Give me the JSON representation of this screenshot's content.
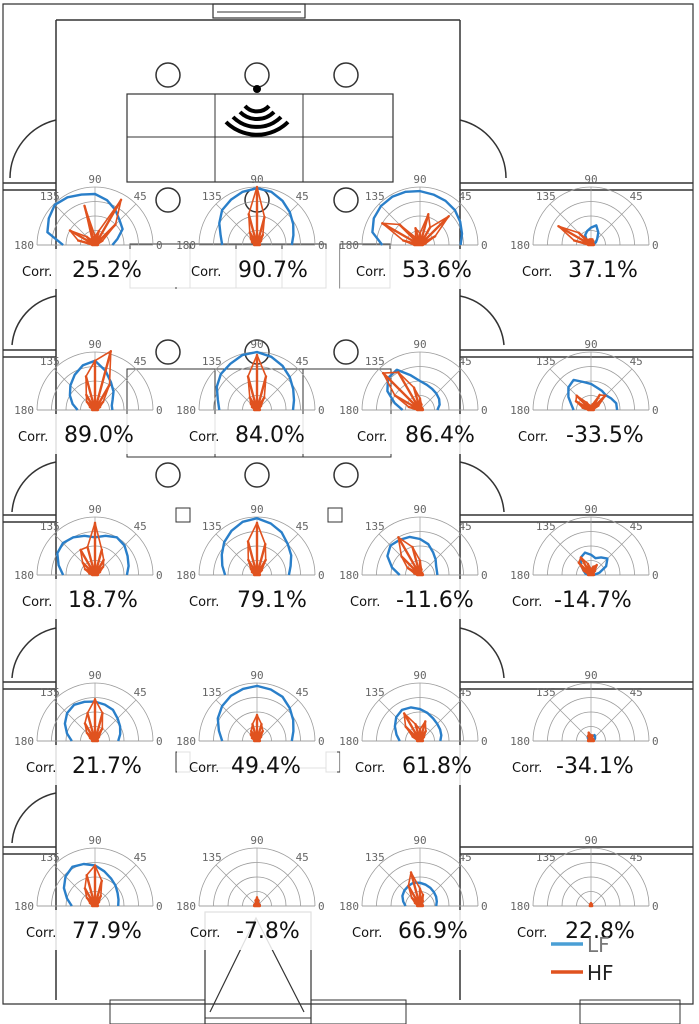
{
  "diagram": {
    "corr_label": "Corr.",
    "angle_labels": [
      "180",
      "135",
      "90",
      "45",
      "0"
    ],
    "cells": [
      {
        "corr": "25.2%",
        "lf": [
          0.55,
          0.85,
          0.92,
          0.98,
          0.95,
          0.9,
          0.88,
          0.8,
          0.7,
          0.6,
          0.55,
          0.4,
          0.3
        ],
        "hf": [
          0.05,
          0.3,
          0.5,
          0.2,
          0.1,
          0.7,
          0.15,
          0.25,
          0.9,
          0.5,
          0.15,
          0.05,
          0.05
        ]
      },
      {
        "corr": "90.7%",
        "lf": [
          0.6,
          0.65,
          0.75,
          0.85,
          0.9,
          0.95,
          0.98,
          0.95,
          0.88,
          0.8,
          0.72,
          0.65,
          0.6
        ],
        "hf": [
          0.05,
          0.05,
          0.1,
          0.15,
          0.25,
          0.55,
          1.0,
          0.5,
          0.2,
          0.1,
          0.05,
          0.05,
          0.05
        ]
      },
      {
        "corr": "53.6%",
        "lf": [
          0.65,
          0.85,
          0.92,
          0.95,
          0.96,
          0.95,
          0.93,
          0.9,
          0.88,
          0.85,
          0.8,
          0.75,
          0.7
        ],
        "hf": [
          0.1,
          0.3,
          0.75,
          0.5,
          0.15,
          0.3,
          0.2,
          0.55,
          0.35,
          0.7,
          0.3,
          0.1,
          0.05
        ]
      },
      {
        "corr": "37.1%",
        "lf": [
          0.05,
          0.05,
          0.05,
          0.1,
          0.2,
          0.25,
          0.3,
          0.35,
          0.25,
          0.15,
          0.1,
          0.05,
          0.05
        ],
        "hf": [
          0.05,
          0.3,
          0.65,
          0.3,
          0.1,
          0.1,
          0.1,
          0.1,
          0.08,
          0.05,
          0.05,
          0.05,
          0.05
        ]
      },
      {
        "corr": "89.0%",
        "lf": [
          0.3,
          0.4,
          0.5,
          0.6,
          0.7,
          0.8,
          0.85,
          0.7,
          0.55,
          0.45,
          0.35,
          0.3,
          0.3
        ],
        "hf": [
          0.05,
          0.05,
          0.1,
          0.2,
          0.3,
          0.6,
          0.85,
          1.05,
          0.5,
          0.2,
          0.1,
          0.05,
          0.05
        ]
      },
      {
        "corr": "84.0%",
        "lf": [
          0.65,
          0.7,
          0.8,
          0.88,
          0.92,
          0.98,
          1.0,
          0.95,
          0.88,
          0.8,
          0.72,
          0.66,
          0.62
        ],
        "hf": [
          0.05,
          0.05,
          0.1,
          0.15,
          0.25,
          0.6,
          0.95,
          0.6,
          0.25,
          0.1,
          0.05,
          0.05,
          0.05
        ]
      },
      {
        "corr": "86.4%",
        "lf": [
          0.3,
          0.45,
          0.65,
          0.78,
          0.8,
          0.62,
          0.5,
          0.45,
          0.42,
          0.4,
          0.38,
          0.35,
          0.3
        ],
        "hf": [
          0.05,
          0.2,
          0.5,
          0.9,
          0.75,
          0.4,
          0.2,
          0.1,
          0.05,
          0.05,
          0.05,
          0.05,
          0.05
        ]
      },
      {
        "corr": "-33.5%",
        "lf": [
          0.3,
          0.35,
          0.45,
          0.55,
          0.6,
          0.5,
          0.45,
          0.4,
          0.38,
          0.36,
          0.4,
          0.45,
          0.45
        ],
        "hf": [
          0.05,
          0.15,
          0.3,
          0.35,
          0.15,
          0.08,
          0.05,
          0.1,
          0.3,
          0.35,
          0.15,
          0.05,
          0.05
        ]
      },
      {
        "corr": "18.7%",
        "lf": [
          0.55,
          0.65,
          0.75,
          0.78,
          0.75,
          0.7,
          0.65,
          0.7,
          0.75,
          0.72,
          0.65,
          0.6,
          0.55
        ],
        "hf": [
          0.05,
          0.1,
          0.2,
          0.3,
          0.5,
          0.5,
          0.9,
          0.45,
          0.3,
          0.2,
          0.1,
          0.05,
          0.05
        ]
      },
      {
        "corr": "79.1%",
        "lf": [
          0.55,
          0.62,
          0.7,
          0.8,
          0.88,
          0.95,
          0.98,
          0.92,
          0.85,
          0.75,
          0.68,
          0.6,
          0.55
        ],
        "hf": [
          0.05,
          0.05,
          0.1,
          0.15,
          0.3,
          0.6,
          0.9,
          0.55,
          0.3,
          0.12,
          0.05,
          0.05,
          0.05
        ]
      },
      {
        "corr": "-11.6%",
        "lf": [
          0.35,
          0.5,
          0.65,
          0.72,
          0.7,
          0.68,
          0.62,
          0.55,
          0.45,
          0.38,
          0.32,
          0.3,
          0.3
        ],
        "hf": [
          0.05,
          0.1,
          0.25,
          0.45,
          0.75,
          0.5,
          0.25,
          0.1,
          0.05,
          0.05,
          0.05,
          0.05,
          0.05
        ]
      },
      {
        "corr": "-14.7%",
        "lf": [
          0.05,
          0.1,
          0.15,
          0.25,
          0.35,
          0.4,
          0.35,
          0.3,
          0.35,
          0.4,
          0.3,
          0.15,
          0.05
        ],
        "hf": [
          0.05,
          0.05,
          0.15,
          0.3,
          0.35,
          0.2,
          0.1,
          0.15,
          0.2,
          0.1,
          0.05,
          0.05,
          0.05
        ]
      },
      {
        "corr": "21.7%",
        "lf": [
          0.4,
          0.5,
          0.6,
          0.68,
          0.72,
          0.7,
          0.68,
          0.65,
          0.62,
          0.55,
          0.5,
          0.45,
          0.4
        ],
        "hf": [
          0.05,
          0.05,
          0.1,
          0.2,
          0.35,
          0.5,
          0.72,
          0.5,
          0.25,
          0.1,
          0.05,
          0.05,
          0.05
        ]
      },
      {
        "corr": "49.4%",
        "lf": [
          0.6,
          0.68,
          0.78,
          0.85,
          0.9,
          0.93,
          0.95,
          0.92,
          0.88,
          0.8,
          0.72,
          0.65,
          0.6
        ],
        "hf": [
          0.05,
          0.05,
          0.1,
          0.15,
          0.2,
          0.3,
          0.45,
          0.3,
          0.2,
          0.1,
          0.05,
          0.05,
          0.05
        ]
      },
      {
        "corr": "61.8%",
        "lf": [
          0.35,
          0.42,
          0.5,
          0.58,
          0.62,
          0.6,
          0.55,
          0.5,
          0.45,
          0.42,
          0.4,
          0.38,
          0.35
        ],
        "hf": [
          0.05,
          0.05,
          0.15,
          0.35,
          0.55,
          0.3,
          0.2,
          0.35,
          0.2,
          0.1,
          0.05,
          0.05,
          0.05
        ]
      },
      {
        "corr": "-34.1%",
        "lf": [
          0.05,
          0.05,
          0.05,
          0.08,
          0.1,
          0.12,
          0.1,
          0.08,
          0.12,
          0.1,
          0.08,
          0.05,
          0.05
        ],
        "hf": [
          0.05,
          0.05,
          0.05,
          0.05,
          0.1,
          0.15,
          0.1,
          0.1,
          0.05,
          0.05,
          0.05,
          0.05,
          0.05
        ]
      },
      {
        "corr": "77.9%",
        "lf": [
          0.4,
          0.5,
          0.62,
          0.72,
          0.78,
          0.75,
          0.7,
          0.62,
          0.55,
          0.5,
          0.45,
          0.42,
          0.4
        ],
        "hf": [
          0.05,
          0.05,
          0.1,
          0.2,
          0.35,
          0.55,
          0.7,
          0.45,
          0.2,
          0.1,
          0.05,
          0.05,
          0.05
        ]
      },
      {
        "corr": "-7.8%",
        "lf": [
          0.05,
          0.05,
          0.05,
          0.05,
          0.05,
          0.05,
          0.1,
          0.1,
          0.05,
          0.05,
          0.05,
          0.05,
          0.05
        ],
        "hf": [
          0.05,
          0.05,
          0.05,
          0.05,
          0.05,
          0.1,
          0.15,
          0.1,
          0.05,
          0.05,
          0.05,
          0.05,
          0.05
        ]
      },
      {
        "corr": "66.9%",
        "lf": [
          0.25,
          0.3,
          0.35,
          0.38,
          0.4,
          0.42,
          0.4,
          0.38,
          0.36,
          0.34,
          0.32,
          0.3,
          0.28
        ],
        "hf": [
          0.05,
          0.05,
          0.1,
          0.2,
          0.4,
          0.6,
          0.3,
          0.2,
          0.1,
          0.05,
          0.05,
          0.05,
          0.05
        ]
      },
      {
        "corr": "22.8%",
        "lf": [
          0.02,
          0.02,
          0.02,
          0.02,
          0.02,
          0.03,
          0.03,
          0.03,
          0.02,
          0.02,
          0.02,
          0.02,
          0.02
        ],
        "hf": [
          0.02,
          0.02,
          0.02,
          0.02,
          0.03,
          0.04,
          0.05,
          0.04,
          0.03,
          0.02,
          0.02,
          0.02,
          0.02
        ]
      }
    ],
    "legend": {
      "items": [
        {
          "name": "LF",
          "color": "#4a9fd5"
        },
        {
          "name": "HF",
          "color": "#e0521f"
        }
      ]
    },
    "colors": {
      "lf": "#2a7fc9",
      "hf": "#e0521f",
      "grid": "#9a9a9a",
      "walls": "#333333"
    },
    "icons": {
      "source": "wifi-signal-icon"
    }
  }
}
